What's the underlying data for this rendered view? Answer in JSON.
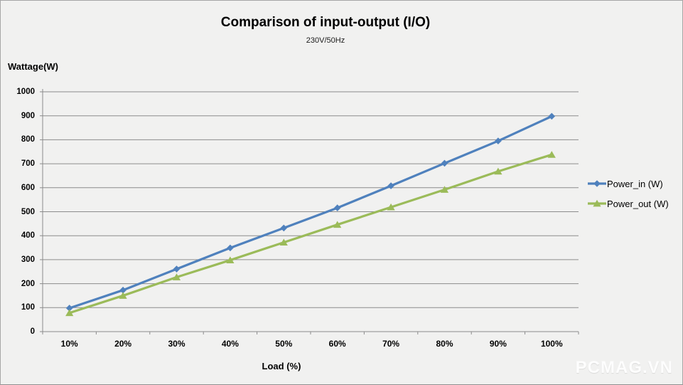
{
  "chart_data": {
    "type": "line",
    "title": "Comparison of input-output (I/O)",
    "subtitle": "230V/50Hz",
    "xlabel": "Load (%)",
    "ylabel": "Wattage(W)",
    "categories": [
      "10%",
      "20%",
      "30%",
      "40%",
      "50%",
      "60%",
      "70%",
      "80%",
      "90%",
      "100%"
    ],
    "series": [
      {
        "name": "Power_in (W)",
        "color": "#4f81bd",
        "marker": "diamond",
        "values": [
          98,
          173,
          261,
          349,
          432,
          516,
          608,
          702,
          795,
          898
        ]
      },
      {
        "name": "Power_out (W)",
        "color": "#9bbb59",
        "marker": "triangle",
        "values": [
          78,
          150,
          227,
          298,
          372,
          446,
          519,
          592,
          668,
          738
        ]
      }
    ],
    "ylim": [
      0,
      1000
    ],
    "y_tick_step": 100,
    "grid": "horizontal gridlines on",
    "legend_position": "right"
  },
  "watermark": "PCMAG.VN",
  "colors": {
    "grid": "#8c8c8c",
    "axis": "#8c8c8c",
    "background": "#f1f1f0",
    "blue_series": "#4f81bd",
    "green_series": "#9bbb59",
    "watermark_text": "#fdfdfd"
  }
}
